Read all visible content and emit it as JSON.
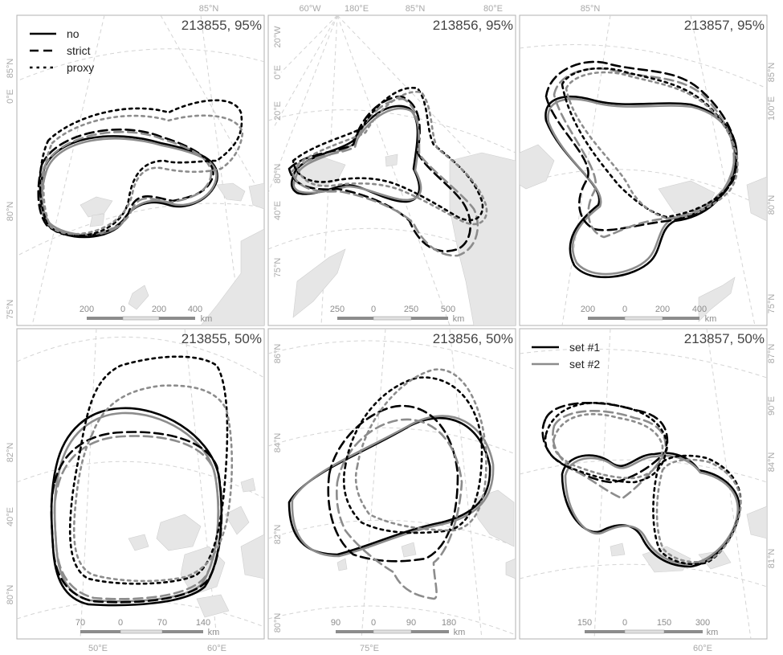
{
  "panels": [
    {
      "title": "213855, 95%",
      "bottom_labels": [],
      "top_labels": [
        "85°N"
      ],
      "left_labels": [
        "0°E",
        "85°N",
        "80°N",
        "75°N"
      ],
      "right_labels": [],
      "scale": {
        "ticks": [
          "200",
          "0",
          "200",
          "400"
        ],
        "unit": "km"
      }
    },
    {
      "title": "213856, 95%",
      "bottom_labels": [],
      "top_labels": [
        "60°W",
        "180°E",
        "85°N",
        "80°E"
      ],
      "left_labels": [
        "20°W",
        "0°E",
        "20°E",
        "80°N",
        "40°E",
        "75°N"
      ],
      "right_labels": [],
      "scale": {
        "ticks": [
          "250",
          "0",
          "250",
          "500"
        ],
        "unit": "km"
      }
    },
    {
      "title": "213857, 95%",
      "bottom_labels": [],
      "top_labels": [
        "85°N"
      ],
      "left_labels": [],
      "right_labels": [
        "85°N",
        "100°E",
        "80°N",
        "75°N"
      ],
      "scale": {
        "ticks": [
          "200",
          "0",
          "200",
          "400"
        ],
        "unit": "km"
      }
    },
    {
      "title": "213855, 50%",
      "bottom_labels": [
        "50°E",
        "60°E"
      ],
      "top_labels": [],
      "left_labels": [
        "82°N",
        "40°E",
        "80°N"
      ],
      "right_labels": [],
      "scale": {
        "ticks": [
          "70",
          "0",
          "70",
          "140"
        ],
        "unit": "km"
      }
    },
    {
      "title": "213856, 50%",
      "bottom_labels": [
        "75°E"
      ],
      "top_labels": [],
      "left_labels": [
        "86°N",
        "84°N",
        "82°N",
        "80°N"
      ],
      "right_labels": [],
      "scale": {
        "ticks": [
          "90",
          "0",
          "90",
          "180"
        ],
        "unit": "km"
      }
    },
    {
      "title": "213857, 50%",
      "bottom_labels": [
        "60°E"
      ],
      "top_labels": [],
      "left_labels": [],
      "right_labels": [
        "87°N",
        "90°E",
        "84°N",
        "81°N"
      ],
      "scale": {
        "ticks": [
          "150",
          "0",
          "150",
          "300"
        ],
        "unit": "km"
      }
    }
  ],
  "legend_type": {
    "items": [
      {
        "label": "no",
        "dash": "solid"
      },
      {
        "label": "strict",
        "dash": "dashed"
      },
      {
        "label": "proxy",
        "dash": "dotted"
      }
    ]
  },
  "legend_set": {
    "items": [
      {
        "label": "set #1",
        "color": "#000000"
      },
      {
        "label": "set #2",
        "color": "#8c8c8c"
      }
    ]
  },
  "colors": {
    "set1": "#000000",
    "set2": "#8c8c8c",
    "land": "#e6e6e6",
    "graticule": "#d4d4d4",
    "frame": "#b0b0b0"
  }
}
